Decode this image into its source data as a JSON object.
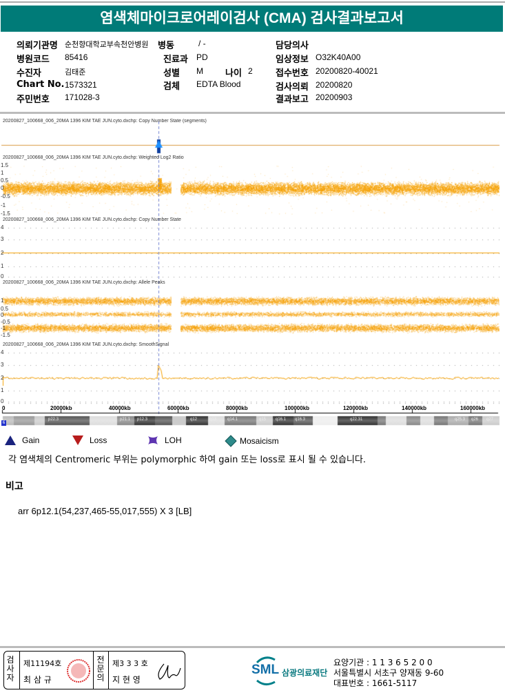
{
  "title": "염색체마이크로어레이검사 (CMA) 검사결과보고서",
  "info": {
    "institution_label": "의뢰기관명",
    "institution": "순천향대학교부속천안병원",
    "ward_label": "병동",
    "ward": "/ -",
    "doctor_label": "담당의사",
    "doctor": "",
    "hospital_code_label": "병원코드",
    "hospital_code": "85416",
    "dept_label": "진료과",
    "dept": "PD",
    "clinical_label": "임상정보",
    "clinical": "O32K40A00",
    "patient_label": "수진자",
    "patient": "김태준",
    "sex_label": "성별",
    "sex": "M",
    "age_label": "나이",
    "age": "2",
    "receipt_label": "접수번호",
    "receipt": "20200820-40021",
    "chart_label": "Chart No.",
    "chart": "1573321",
    "specimen_label": "검체",
    "specimen": "EDTA Blood",
    "request_label": "검사의뢰",
    "request": "20200820",
    "id_label": "주민번호",
    "id": "171028-3",
    "report_label": "결과보고",
    "report": "20200903"
  },
  "plot": {
    "panels": [
      {
        "title": "20200827_100668_006_20MA 1396 KIM TAE JUN.cyto.dxchp: Copy Number State (segments)",
        "ticks": []
      },
      {
        "title": "20200827_100668_006_20MA 1396 KIM TAE JUN.cyto.dxchp: Weighted Log2 Ratio",
        "ticks": [
          "1.5",
          "1",
          "0.5",
          "0",
          "-0.5",
          "-1",
          "-1.5"
        ]
      },
      {
        "title": "20200827_100668_006_20MA 1396 KIM TAE JUN.cyto.dxchp: Copy Number State",
        "ticks": [
          "4",
          "3",
          "2",
          "1",
          "0"
        ]
      },
      {
        "title": "20200827_100668_006_20MA 1396 KIM TAE JUN.cyto.dxchp: Allele Peaks",
        "ticks": [
          "",
          "1",
          "0.5",
          "0",
          "-0.5",
          "-1",
          "-1.5"
        ]
      },
      {
        "title": "20200827_100668_006_20MA 1396 KIM TAE JUN.cyto.dxchp: SmoothSignal",
        "ticks": [
          "4",
          "3",
          "2",
          "1",
          "0"
        ]
      }
    ],
    "x_ticks": [
      "0",
      "20000kb",
      "40000kb",
      "60000kb",
      "80000kb",
      "100000kb",
      "120000kb",
      "140000kb",
      "160000kb"
    ],
    "bands": [
      "p22.3",
      "p21.1",
      "p12.3",
      "q12",
      "q13",
      "q14.1",
      "q15",
      "q16.1",
      "q16.3",
      "q21",
      "q22.31",
      "q25.3",
      "q26",
      "q27"
    ],
    "chromosome_label": "6",
    "data_color": "#f5a000",
    "gain_marker_color": "#1040a0"
  },
  "legend": [
    {
      "icon": "gain-triangle",
      "label": "Gain",
      "color": "#1a237e"
    },
    {
      "icon": "loss-triangle",
      "label": "Loss",
      "color": "#b71c1c"
    },
    {
      "icon": "loh-cross",
      "label": "LOH",
      "color": "#5e35b1"
    },
    {
      "icon": "mosaicism-diamond",
      "label": "Mosaicism",
      "color": "#2e8b8b"
    }
  ],
  "note": "각 염색체의 Centromeric 부위는 polymorphic 하여 gain 또는 loss로 표시 될 수 있습니다.",
  "remark_heading": "비고",
  "remark": "arr 6p12.1(54,237,465-55,017,555) X 3 [LB]",
  "footer": {
    "examiner_label": "검사자",
    "examiner_no": "제11194호",
    "examiner_name": "최 삼 규",
    "specialist_label": "전문의",
    "specialist_no": "제3 3 3 호",
    "specialist_name": "지 현 영",
    "org_logo": "SML",
    "org_name": "삼광의료재단",
    "care_code": "요양기관 : 1 1 3 6 5 2 0 0",
    "address": "서울특별시 서초구 양재동 9-60",
    "phone": "대표번호 : 1661-5117"
  }
}
